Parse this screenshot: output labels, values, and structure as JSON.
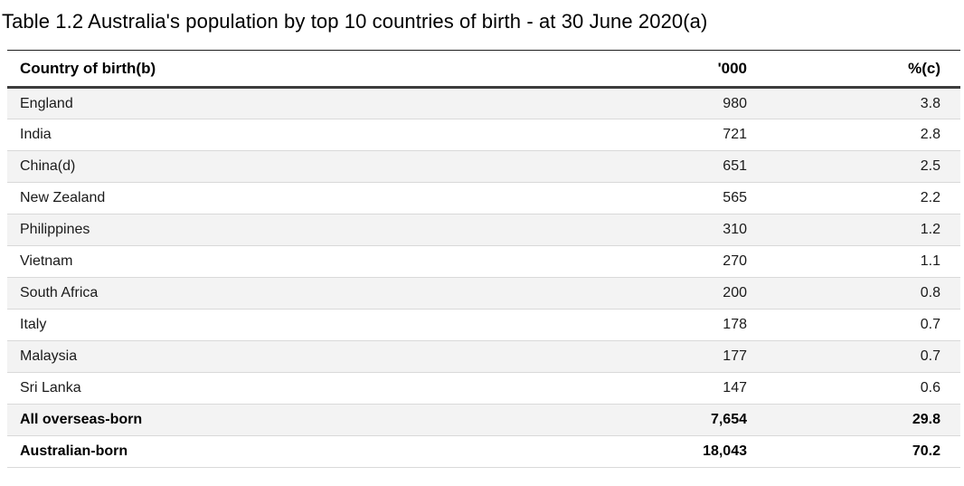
{
  "title": "Table 1.2 Australia's population by top 10 countries of birth - at 30 June 2020(a)",
  "table": {
    "columns": [
      "Country of birth(b)",
      "'000",
      "%(c)"
    ],
    "rows": [
      {
        "country": "England",
        "thousands": "980",
        "percent": "3.8"
      },
      {
        "country": "India",
        "thousands": "721",
        "percent": "2.8"
      },
      {
        "country": "China(d)",
        "thousands": "651",
        "percent": "2.5"
      },
      {
        "country": "New Zealand",
        "thousands": "565",
        "percent": "2.2"
      },
      {
        "country": "Philippines",
        "thousands": "310",
        "percent": "1.2"
      },
      {
        "country": "Vietnam",
        "thousands": "270",
        "percent": "1.1"
      },
      {
        "country": "South Africa",
        "thousands": "200",
        "percent": "0.8"
      },
      {
        "country": "Italy",
        "thousands": "178",
        "percent": "0.7"
      },
      {
        "country": "Malaysia",
        "thousands": "177",
        "percent": "0.7"
      },
      {
        "country": "Sri Lanka",
        "thousands": "147",
        "percent": "0.6"
      }
    ],
    "summary_rows": [
      {
        "country": "All overseas-born",
        "thousands": "7,654",
        "percent": "29.8"
      },
      {
        "country": "Australian-born",
        "thousands": "18,043",
        "percent": "70.2"
      }
    ]
  },
  "colors": {
    "row_shaded": "#f3f3f3",
    "row_separator": "#d9d9d9",
    "header_rule_top": "#1f1f1f",
    "header_rule_bottom": "#3d3d3d",
    "text": "#1a1a1a"
  },
  "chart_data": {
    "type": "table",
    "title": "Table 1.2 Australia's population by top 10 countries of birth - at 30 June 2020(a)",
    "columns": [
      "Country of birth(b)",
      "'000",
      "%(c)"
    ],
    "categories": [
      "England",
      "India",
      "China(d)",
      "New Zealand",
      "Philippines",
      "Vietnam",
      "South Africa",
      "Italy",
      "Malaysia",
      "Sri Lanka",
      "All overseas-born",
      "Australian-born"
    ],
    "series": [
      {
        "name": "'000",
        "values": [
          980,
          721,
          651,
          565,
          310,
          270,
          200,
          178,
          177,
          147,
          7654,
          18043
        ]
      },
      {
        "name": "%(c)",
        "values": [
          3.8,
          2.8,
          2.5,
          2.2,
          1.2,
          1.1,
          0.8,
          0.7,
          0.7,
          0.6,
          29.8,
          70.2
        ]
      }
    ]
  }
}
